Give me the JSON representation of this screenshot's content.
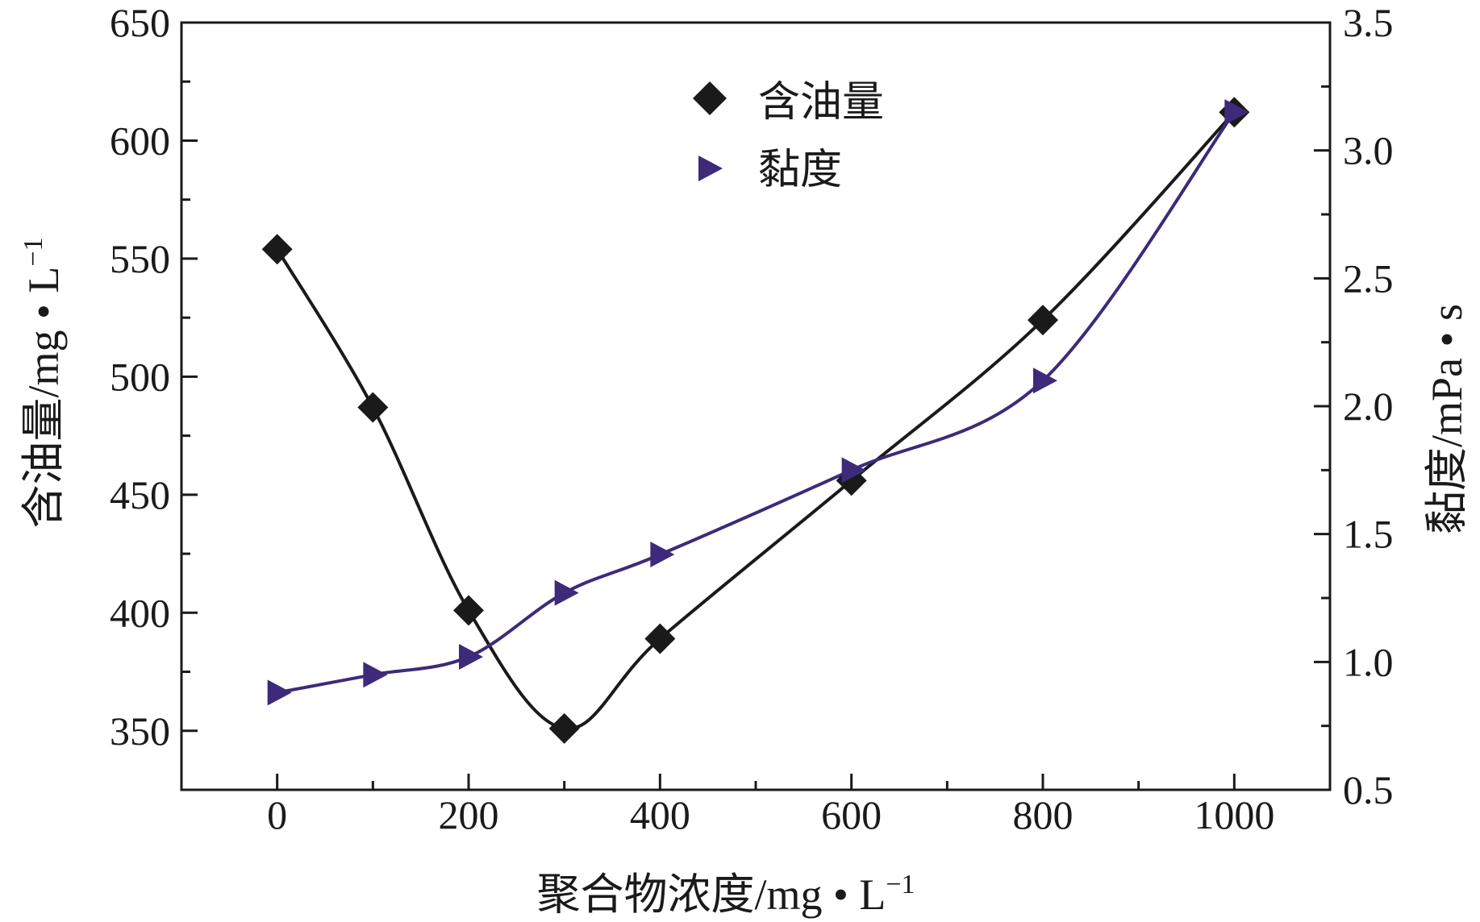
{
  "chart_data": {
    "type": "line",
    "title": "",
    "xlabel": "聚合物浓度/mg • L",
    "xlabel_sup": "−1",
    "ylabel_left": "含油量/mg • L",
    "ylabel_left_sup": "−1",
    "ylabel_right": "黏度/mPa • s",
    "xlim": [
      -100,
      1100
    ],
    "ylim_left": [
      325,
      650
    ],
    "ylim_right": [
      0.5,
      3.5
    ],
    "x_ticks": [
      0,
      200,
      400,
      600,
      800,
      1000
    ],
    "x_tick_labels": [
      "0",
      "200",
      "400",
      "600",
      "800",
      "1000"
    ],
    "y_left_ticks": [
      350,
      400,
      450,
      500,
      550,
      600,
      650
    ],
    "y_left_tick_labels": [
      "350",
      "400",
      "450",
      "500",
      "550",
      "600",
      "650"
    ],
    "y_right_ticks": [
      0.5,
      1.0,
      1.5,
      2.0,
      2.5,
      3.0,
      3.5
    ],
    "y_right_tick_labels": [
      "0.5",
      "1.0",
      "1.5",
      "2.0",
      "2.5",
      "3.0",
      "3.5"
    ],
    "legend_position": "top-center",
    "series": [
      {
        "name": "含油量",
        "axis": "left",
        "marker": "diamond",
        "color": "#1a1a1a",
        "x": [
          0,
          100,
          200,
          300,
          400,
          600,
          800,
          1000
        ],
        "values": [
          554,
          487,
          401,
          351,
          389,
          456,
          524,
          612
        ]
      },
      {
        "name": "黏度",
        "axis": "right",
        "marker": "triangle-right",
        "color": "#3d2a7a",
        "x": [
          0,
          100,
          200,
          300,
          400,
          600,
          800,
          1000
        ],
        "values": [
          0.88,
          0.95,
          1.02,
          1.27,
          1.42,
          1.75,
          2.1,
          3.15
        ]
      }
    ]
  }
}
